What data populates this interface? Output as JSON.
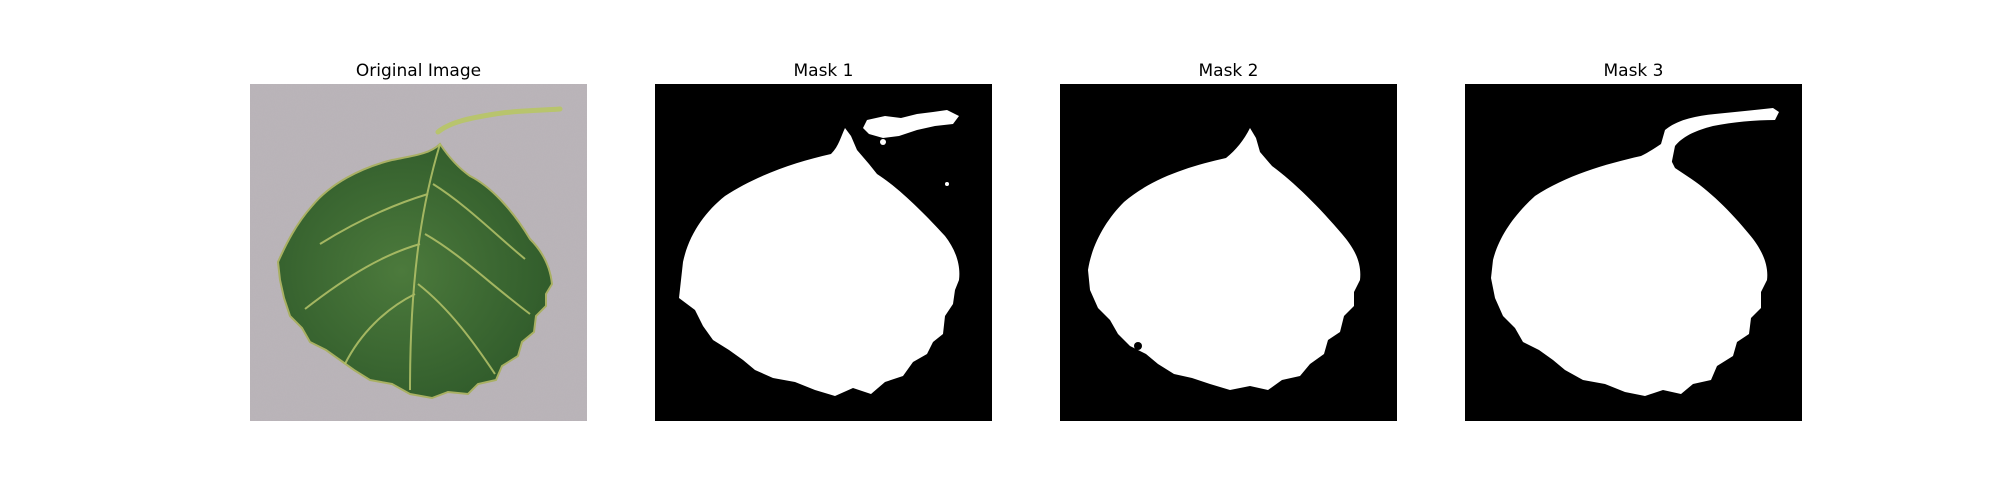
{
  "figure": {
    "panels": [
      {
        "title": "Original Image"
      },
      {
        "title": "Mask 1"
      },
      {
        "title": "Mask 2"
      },
      {
        "title": "Mask 3"
      }
    ]
  },
  "colors": {
    "leaf_dark": "#2f5a2a",
    "leaf_mid": "#4c7a3c",
    "vein": "#b6c46a",
    "stem": "#b8c46d",
    "background_gray": "#b9b2b8",
    "mask_foreground": "#ffffff",
    "mask_background": "#000000"
  }
}
